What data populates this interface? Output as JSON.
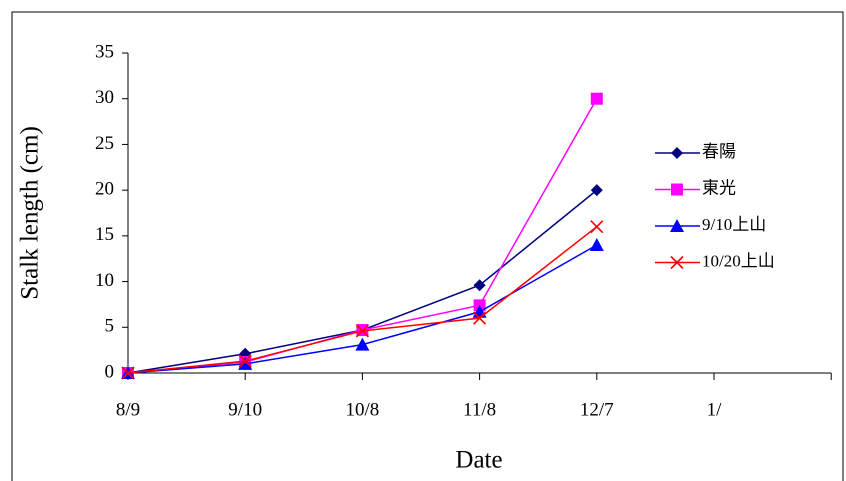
{
  "chart_data": {
    "type": "line",
    "xlabel": "Date",
    "ylabel": "Stalk length (cm)",
    "categories": [
      "8/9",
      "9/10",
      "10/8",
      "11/8",
      "12/7",
      "1/",
      null
    ],
    "series": [
      {
        "name": "春陽",
        "color": "#000080",
        "marker": "diamond",
        "values": [
          0,
          2.1,
          4.7,
          9.6,
          20,
          null,
          null
        ]
      },
      {
        "name": "東光",
        "color": "#ff00ff",
        "marker": "square",
        "values": [
          0,
          1.2,
          4.7,
          7.4,
          30,
          null,
          null
        ]
      },
      {
        "name": "9/10上山",
        "color": "#0000ff",
        "marker": "triangle",
        "values": [
          0,
          1.0,
          3.1,
          6.7,
          14,
          null,
          null
        ]
      },
      {
        "name": "10/20上山",
        "color": "#ff0000",
        "marker": "x",
        "values": [
          0,
          1.3,
          4.6,
          6.0,
          16,
          null,
          null
        ]
      }
    ],
    "ylim": [
      0,
      35
    ],
    "yticks": [
      0,
      5,
      10,
      15,
      20,
      25,
      30,
      35
    ],
    "legend": "right",
    "grid": false
  }
}
